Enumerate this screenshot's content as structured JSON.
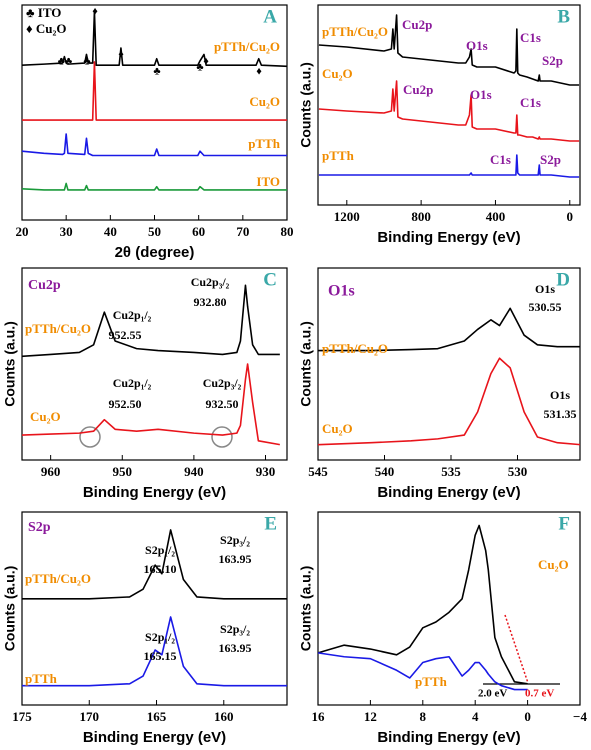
{
  "chart_data": [
    {
      "type": "line",
      "label": "A",
      "xlabel": "2θ (degree)",
      "xlim": [
        20,
        80
      ],
      "xticks": [
        20,
        30,
        40,
        50,
        60,
        70,
        80
      ],
      "ylim": [
        0,
        100
      ],
      "x": [
        20,
        25,
        29.2,
        29.6,
        30,
        30.4,
        34.2,
        34.6,
        35,
        36,
        36.4,
        36.8,
        42,
        42.4,
        42.8,
        50,
        50.5,
        51,
        55,
        59.8,
        60.3,
        61.2,
        61.7,
        62.2,
        73,
        73.6,
        74.2,
        80
      ],
      "series": [
        {
          "name": "pTTh/Cu₂O",
          "color": "#000000",
          "values": [
            72,
            72.5,
            73,
            76,
            73,
            72.5,
            73,
            77,
            73,
            73,
            97,
            72,
            72,
            80,
            72,
            72,
            75,
            72,
            72,
            72,
            74,
            77,
            72,
            72,
            72,
            75,
            72,
            71.5
          ]
        },
        {
          "name": "Cu₂O",
          "color": "#e8141b",
          "values": [
            46.5,
            46.5,
            46.5,
            46.5,
            46.5,
            46.5,
            46.5,
            46.5,
            46.5,
            46.5,
            73.5,
            46.5,
            46.5,
            46.5,
            46.5,
            46.5,
            46.5,
            46.5,
            46.5,
            46.5,
            46.5,
            46.5,
            46.5,
            46.5,
            46.5,
            46.5,
            46.5,
            46.5
          ]
        },
        {
          "name": "pTTh",
          "color": "#1a1ae6",
          "values": [
            32,
            31,
            30.5,
            31,
            40,
            31,
            30.5,
            38,
            31,
            30,
            30,
            30,
            30,
            30,
            30,
            30,
            33,
            30,
            30,
            30,
            32,
            30,
            30,
            30,
            30,
            30,
            30,
            30
          ]
        },
        {
          "name": "ITO",
          "color": "#1a9a3a",
          "values": [
            14.5,
            14,
            14,
            14,
            17,
            14,
            14,
            16,
            14,
            14,
            14,
            14,
            14,
            14,
            14,
            14,
            15.5,
            14,
            14,
            14,
            15.5,
            14,
            14,
            14,
            14,
            14,
            14,
            14
          ]
        }
      ],
      "annotations": [
        "♣ ITO",
        "♦ Cu₂O",
        "♣♣",
        "♣",
        "♦",
        "♦",
        "♣",
        "♣",
        "♦",
        "♦"
      ]
    },
    {
      "type": "line",
      "label": "B",
      "xlabel": "Binding Energy (eV)",
      "ylabel": "Counts (a.u.)",
      "xlim": [
        1355,
        -55
      ],
      "xticks": [
        1200,
        800,
        400,
        0
      ],
      "ylim": [
        0,
        100
      ],
      "x": [
        1350,
        1200,
        1000,
        960,
        952,
        945,
        932,
        925,
        900,
        800,
        700,
        600,
        560,
        540,
        531,
        525,
        500,
        400,
        300,
        290,
        285,
        280,
        270,
        230,
        200,
        170,
        164,
        160,
        100,
        0,
        -50
      ],
      "series": [
        {
          "name": "pTTh/Cu₂O",
          "color": "#000000",
          "values": [
            80,
            79,
            77,
            78,
            88,
            78,
            95,
            76,
            74,
            73,
            72,
            71,
            71,
            74,
            78,
            70,
            69,
            69,
            66,
            67,
            88,
            66,
            65,
            64,
            63,
            62,
            65,
            62,
            62,
            60,
            60
          ]
        },
        {
          "name": "Cu₂O",
          "color": "#e8141b",
          "values": [
            48,
            47,
            46,
            47,
            58,
            47,
            62,
            44,
            43,
            42,
            41,
            40,
            40,
            45,
            55,
            39,
            38,
            38,
            36,
            36,
            45,
            35,
            35,
            34,
            34,
            33,
            34,
            33,
            33,
            32,
            32
          ]
        },
        {
          "name": "pTTh",
          "color": "#1a1ae6",
          "values": [
            15,
            15,
            15,
            15,
            15,
            15,
            15,
            15,
            15,
            15,
            15,
            15,
            15,
            15,
            16,
            15,
            15,
            15,
            15,
            15,
            25,
            16,
            15,
            15,
            15,
            15,
            20,
            15,
            15,
            14,
            14
          ]
        }
      ],
      "annotations": [
        "Cu2p",
        "O1s",
        "C1s",
        "S2p",
        "Cu2p",
        "O1s",
        "C1s",
        "C1s",
        "S2p"
      ]
    },
    {
      "type": "line",
      "label": "C",
      "xlabel": "Binding Energy (eV)",
      "ylabel": "Counts (a.u.)",
      "xlim": [
        964,
        927
      ],
      "xticks": [
        960,
        950,
        940,
        930
      ],
      "ylim": [
        0,
        100
      ],
      "x": [
        964,
        960,
        956,
        954,
        952.5,
        951,
        948,
        945,
        940,
        936,
        934,
        933.5,
        932.8,
        932.5,
        931.8,
        931,
        928
      ],
      "series": [
        {
          "name": "pTTh/Cu₂O",
          "color": "#000000",
          "values": [
            54,
            55,
            56,
            60,
            77,
            62,
            58,
            57,
            56,
            55,
            56,
            62,
            91,
            80,
            60,
            55,
            55
          ]
        },
        {
          "name": "Cu₂O",
          "color": "#e8141b",
          "values": [
            13,
            13.5,
            14,
            15,
            21,
            16,
            15,
            16,
            14,
            13,
            14,
            18,
            42,
            50,
            30,
            10,
            8
          ]
        }
      ],
      "annotations": [
        "Cu2p",
        "Cu2p₁/₂",
        "952.55",
        "Cu2p₃/₂",
        "932.80",
        "Cu2p₁/₂",
        "952.50",
        "Cu2p₃/₂",
        "932.50"
      ]
    },
    {
      "type": "line",
      "label": "D",
      "xlabel": "Binding Energy (eV)",
      "ylabel": "Counts (a.u.)",
      "xlim": [
        545,
        525.3
      ],
      "xticks": [
        545,
        540,
        535,
        530
      ],
      "ylim": [
        0,
        100
      ],
      "x": [
        545,
        541,
        538,
        536,
        534,
        533,
        532,
        531.35,
        530.55,
        529.5,
        528.5,
        527,
        525.3
      ],
      "series": [
        {
          "name": "pTTh/Cu₂O",
          "color": "#000000",
          "values": [
            57,
            57,
            57.5,
            58,
            62,
            68,
            73,
            70,
            79,
            65,
            60,
            59,
            59
          ]
        },
        {
          "name": "Cu₂O",
          "color": "#e8141b",
          "values": [
            8,
            9,
            10,
            11,
            13,
            25,
            45,
            53,
            48,
            25,
            12,
            9,
            8
          ]
        }
      ],
      "annotations": [
        "O1s",
        "O1s",
        "530.55",
        "O1s",
        "531.35"
      ]
    },
    {
      "type": "line",
      "label": "E",
      "xlabel": "Binding Energy (eV)",
      "ylabel": "Counts (a.u.)",
      "xlim": [
        175,
        155.3
      ],
      "xticks": [
        175,
        170,
        165,
        160
      ],
      "ylim": [
        0,
        100
      ],
      "x": [
        175,
        170,
        167,
        166,
        165.1,
        164.6,
        163.95,
        163,
        162,
        160,
        155.3
      ],
      "series": [
        {
          "name": "pTTh/Cu₂O",
          "color": "#000000",
          "values": [
            55,
            55,
            56,
            60,
            72.5,
            68,
            90.7,
            65,
            56,
            55,
            55
          ]
        },
        {
          "name": "pTTh",
          "color": "#1a1ae6",
          "values": [
            10,
            10,
            11,
            15,
            28.5,
            26,
            45.6,
            20,
            11,
            10,
            10
          ]
        }
      ],
      "annotations": [
        "S2p",
        "S2p₁/₂",
        "165.10",
        "S2p₃/₂",
        "163.95",
        "S2p₁/₂",
        "165.15",
        "S2p₃/₂",
        "163.95"
      ]
    },
    {
      "type": "line",
      "label": "F",
      "xlabel": "Binding Energy (eV)",
      "ylabel": "Counts (a.u.)",
      "xlim": [
        16,
        -4
      ],
      "xticks": [
        16,
        12,
        8,
        4,
        0,
        {
          "value": -4,
          "label": "−4"
        }
      ],
      "ylim": [
        0,
        100
      ],
      "x": [
        16,
        14,
        12,
        10,
        9,
        8,
        7,
        6,
        5,
        4.5,
        4,
        3.7,
        3.2,
        3,
        2.5,
        2,
        1,
        0
      ],
      "series": [
        {
          "name": "Cu₂O",
          "color": "#000000",
          "values": [
            27,
            31,
            29,
            26,
            30,
            40,
            43,
            48,
            55,
            70,
            88,
            93,
            80,
            70,
            35,
            25,
            12,
            11
          ]
        },
        {
          "name": "pTTh",
          "color": "#1a1ae6",
          "values": [
            27,
            25,
            24,
            18,
            14,
            22,
            24,
            25,
            15,
            18,
            22,
            22,
            18,
            16,
            12,
            10,
            8,
            8
          ]
        }
      ],
      "annotations": [
        "2.0 eV",
        "0.7 eV"
      ]
    }
  ]
}
